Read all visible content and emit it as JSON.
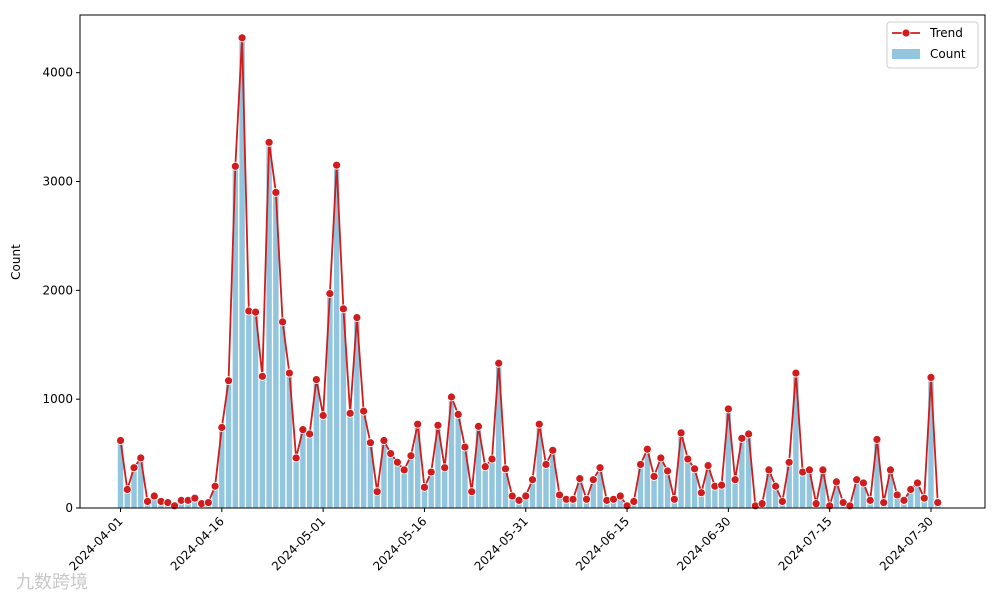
{
  "chart_data": {
    "type": "bar",
    "ylabel": "Count",
    "legend": "upper right",
    "x": [
      "2024-04-01",
      "2024-04-02",
      "2024-04-03",
      "2024-04-04",
      "2024-04-05",
      "2024-04-06",
      "2024-04-07",
      "2024-04-08",
      "2024-04-09",
      "2024-04-10",
      "2024-04-11",
      "2024-04-12",
      "2024-04-13",
      "2024-04-14",
      "2024-04-15",
      "2024-04-16",
      "2024-04-17",
      "2024-04-18",
      "2024-04-19",
      "2024-04-20",
      "2024-04-21",
      "2024-04-22",
      "2024-04-23",
      "2024-04-24",
      "2024-04-25",
      "2024-04-26",
      "2024-04-27",
      "2024-04-28",
      "2024-04-29",
      "2024-04-30",
      "2024-05-01",
      "2024-05-02",
      "2024-05-03",
      "2024-05-04",
      "2024-05-05",
      "2024-05-06",
      "2024-05-07",
      "2024-05-08",
      "2024-05-09",
      "2024-05-10",
      "2024-05-11",
      "2024-05-12",
      "2024-05-13",
      "2024-05-14",
      "2024-05-15",
      "2024-05-16",
      "2024-05-17",
      "2024-05-18",
      "2024-05-19",
      "2024-05-20",
      "2024-05-21",
      "2024-05-22",
      "2024-05-23",
      "2024-05-24",
      "2024-05-25",
      "2024-05-26",
      "2024-05-27",
      "2024-05-28",
      "2024-05-29",
      "2024-05-30",
      "2024-05-31",
      "2024-06-01",
      "2024-06-02",
      "2024-06-03",
      "2024-06-04",
      "2024-06-05",
      "2024-06-06",
      "2024-06-07",
      "2024-06-08",
      "2024-06-09",
      "2024-06-10",
      "2024-06-11",
      "2024-06-12",
      "2024-06-13",
      "2024-06-14",
      "2024-06-15",
      "2024-06-16",
      "2024-06-17",
      "2024-06-18",
      "2024-06-19",
      "2024-06-20",
      "2024-06-21",
      "2024-06-22",
      "2024-06-23",
      "2024-06-24",
      "2024-06-25",
      "2024-06-26",
      "2024-06-27",
      "2024-06-28",
      "2024-06-29",
      "2024-06-30",
      "2024-07-01",
      "2024-07-02",
      "2024-07-03",
      "2024-07-04",
      "2024-07-05",
      "2024-07-06",
      "2024-07-07",
      "2024-07-08",
      "2024-07-09",
      "2024-07-10",
      "2024-07-11",
      "2024-07-12",
      "2024-07-13",
      "2024-07-14",
      "2024-07-15",
      "2024-07-16",
      "2024-07-17",
      "2024-07-18",
      "2024-07-19",
      "2024-07-20",
      "2024-07-21",
      "2024-07-22",
      "2024-07-23",
      "2024-07-24",
      "2024-07-25",
      "2024-07-26",
      "2024-07-27",
      "2024-07-28",
      "2024-07-29",
      "2024-07-30",
      "2024-07-31"
    ],
    "series": [
      {
        "name": "Trend",
        "type": "line",
        "color": "#d01c1c",
        "values": [
          620,
          170,
          370,
          460,
          60,
          110,
          60,
          50,
          20,
          70,
          70,
          90,
          40,
          50,
          200,
          740,
          1170,
          3140,
          4320,
          1810,
          1800,
          1210,
          3360,
          2900,
          1710,
          1240,
          460,
          720,
          680,
          1180,
          850,
          1970,
          3150,
          1830,
          870,
          1750,
          890,
          600,
          150,
          620,
          500,
          420,
          350,
          480,
          770,
          190,
          330,
          760,
          370,
          1020,
          860,
          560,
          150,
          750,
          380,
          450,
          1330,
          360,
          110,
          70,
          110,
          260,
          770,
          400,
          530,
          120,
          80,
          80,
          270,
          80,
          260,
          370,
          70,
          80,
          110,
          20,
          60,
          400,
          540,
          290,
          460,
          340,
          80,
          690,
          450,
          360,
          140,
          390,
          200,
          210,
          910,
          260,
          640,
          680,
          20,
          40,
          350,
          200,
          60,
          420,
          1240,
          330,
          350,
          40,
          350,
          20,
          240,
          50,
          20,
          260,
          230,
          70,
          630,
          50,
          350,
          120,
          70,
          170,
          230,
          90,
          1200,
          50
        ]
      },
      {
        "name": "Count",
        "type": "bar",
        "color": "#92c5de",
        "values": [
          620,
          170,
          370,
          460,
          60,
          110,
          60,
          50,
          20,
          70,
          70,
          90,
          40,
          50,
          200,
          740,
          1170,
          3140,
          4320,
          1810,
          1800,
          1210,
          3360,
          2900,
          1710,
          1240,
          460,
          720,
          680,
          1180,
          850,
          1970,
          3150,
          1830,
          870,
          1750,
          890,
          600,
          150,
          620,
          500,
          420,
          350,
          480,
          770,
          190,
          330,
          760,
          370,
          1020,
          860,
          560,
          150,
          750,
          380,
          450,
          1330,
          360,
          110,
          70,
          110,
          260,
          770,
          400,
          530,
          120,
          80,
          80,
          270,
          80,
          260,
          370,
          70,
          80,
          110,
          20,
          60,
          400,
          540,
          290,
          460,
          340,
          80,
          690,
          450,
          360,
          140,
          390,
          200,
          210,
          910,
          260,
          640,
          680,
          20,
          40,
          350,
          200,
          60,
          420,
          1240,
          330,
          350,
          40,
          350,
          20,
          240,
          50,
          20,
          260,
          230,
          70,
          630,
          50,
          350,
          120,
          70,
          170,
          230,
          90,
          1200,
          50
        ]
      }
    ],
    "xlim": [
      "2024-03-26",
      "2024-08-07"
    ],
    "xticks": [
      "2024-04-01",
      "2024-04-16",
      "2024-05-01",
      "2024-05-16",
      "2024-05-31",
      "2024-06-15",
      "2024-06-30",
      "2024-07-15",
      "2024-07-30"
    ],
    "ylim": [
      0,
      4530
    ],
    "yticks": [
      0,
      1000,
      2000,
      3000,
      4000
    ],
    "watermark": "九数跨境"
  }
}
